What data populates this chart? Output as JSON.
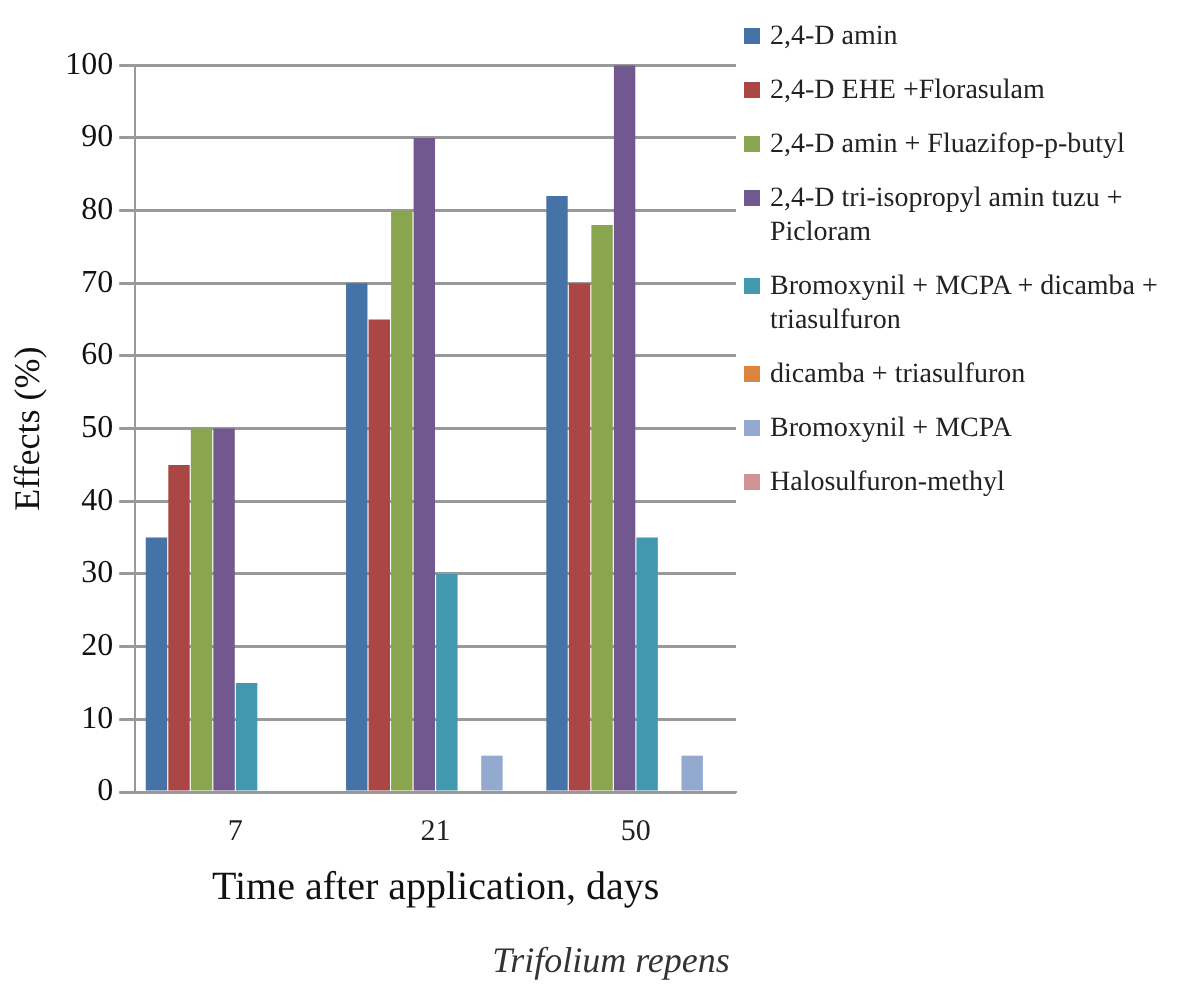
{
  "chart_data": {
    "type": "bar",
    "xlabel": "Time after application, days",
    "ylabel": "Effects (%)",
    "categories": [
      "7",
      "21",
      "50"
    ],
    "series": [
      {
        "name": "2,4-D amin",
        "color": "#4573a7",
        "values": [
          35,
          70,
          82
        ]
      },
      {
        "name": "2,4-D EHE +Florasulam",
        "color": "#aa4643",
        "values": [
          45,
          65,
          70
        ]
      },
      {
        "name": "2,4-D amin + Fluazifop-p-butyl",
        "color": "#89a54e",
        "values": [
          50,
          80,
          78
        ]
      },
      {
        "name": "2,4-D tri-isopropyl amin tuzu +  Picloram",
        "color": "#71588f",
        "values": [
          50,
          90,
          100
        ]
      },
      {
        "name": "Bromoxynil + MCPA + dicamba + triasulfuron",
        "color": "#4198af",
        "values": [
          15,
          30,
          35
        ]
      },
      {
        "name": "dicamba + triasulfuron",
        "color": "#db843d",
        "values": [
          0,
          0,
          0
        ]
      },
      {
        "name": "Bromoxynil + MCPA",
        "color": "#93a9cf",
        "values": [
          0,
          5,
          5
        ]
      },
      {
        "name": "Halosulfuron-methyl",
        "color": "#d19392",
        "values": [
          0,
          0,
          0
        ]
      }
    ],
    "ylim": [
      0,
      100
    ],
    "yticks": [
      0,
      10,
      20,
      30,
      40,
      50,
      60,
      70,
      80,
      90,
      100
    ],
    "grid": "y",
    "legend": "right",
    "annotations": [
      "Trifolium repens"
    ]
  }
}
